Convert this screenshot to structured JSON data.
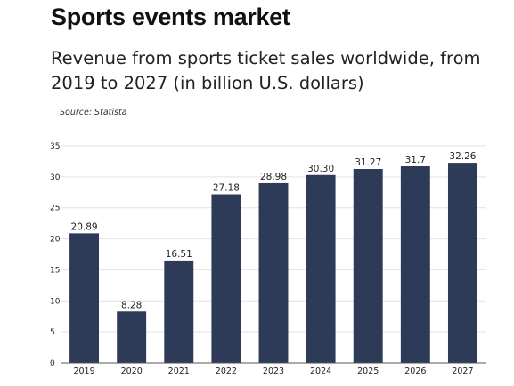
{
  "header": {
    "title": "Sports events market",
    "subtitle": "Revenue from sports ticket sales worldwide, from 2019 to 2027 (in billion U.S. dollars)",
    "source": "Source: Statista"
  },
  "colors": {
    "bar": "#2d3a58",
    "grid": "#e2e2e2"
  },
  "chart_data": {
    "type": "bar",
    "title": "Sports events market",
    "subtitle": "Revenue from sports ticket sales worldwide, from 2019 to 2027 (in billion U.S. dollars)",
    "xlabel": "",
    "ylabel": "",
    "categories": [
      "2019",
      "2020",
      "2021",
      "2022",
      "2023",
      "2024",
      "2025",
      "2026",
      "2027"
    ],
    "values": [
      20.89,
      8.28,
      16.51,
      27.18,
      28.98,
      30.3,
      31.27,
      31.7,
      32.26
    ],
    "data_labels": [
      "20.89",
      "8.28",
      "16.51",
      "27.18",
      "28.98",
      "30.30",
      "31.27",
      "31.7",
      "32.26"
    ],
    "ylim": [
      0,
      35
    ],
    "yticks": [
      0,
      5,
      10,
      15,
      20,
      25,
      30,
      35
    ],
    "grid": true,
    "legend": "none"
  }
}
